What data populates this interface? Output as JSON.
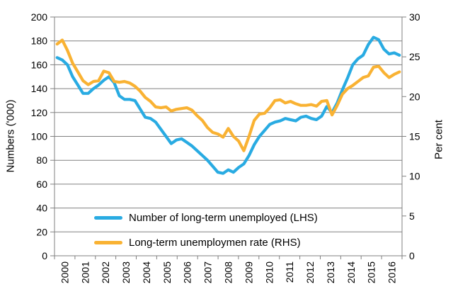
{
  "colors": {
    "blue": "#29ABE2",
    "orange": "#F9B233",
    "grid": "#808080",
    "text": "#000000"
  },
  "chart_data": {
    "type": "line",
    "x": [
      2000,
      2000.25,
      2000.5,
      2000.75,
      2001,
      2001.25,
      2001.5,
      2001.75,
      2002,
      2002.25,
      2002.5,
      2002.75,
      2003,
      2003.25,
      2003.5,
      2003.75,
      2004,
      2004.25,
      2004.5,
      2004.75,
      2005,
      2005.25,
      2005.5,
      2005.75,
      2006,
      2006.25,
      2006.5,
      2006.75,
      2007,
      2007.25,
      2007.5,
      2007.75,
      2008,
      2008.25,
      2008.5,
      2008.75,
      2009,
      2009.25,
      2009.5,
      2009.75,
      2010,
      2010.25,
      2010.5,
      2010.75,
      2011,
      2011.25,
      2011.5,
      2011.75,
      2012,
      2012.25,
      2012.5,
      2012.75,
      2013,
      2013.25,
      2013.5,
      2013.75,
      2014,
      2014.25,
      2014.5,
      2014.75,
      2015,
      2015.25,
      2015.5,
      2015.75,
      2016,
      2016.25,
      2016.5
    ],
    "series": [
      {
        "name": "Number of long-term unemployed (LHS)",
        "axis": "left",
        "color": "#29ABE2",
        "values": [
          166,
          164,
          160,
          150,
          143,
          136,
          136,
          140,
          143,
          147,
          150,
          145,
          134,
          131,
          131,
          130,
          123,
          116,
          115,
          112,
          106,
          100,
          94,
          97,
          98,
          95,
          92,
          88,
          84,
          80,
          75,
          70,
          69,
          72,
          70,
          74,
          77,
          84,
          93,
          100,
          105,
          110,
          112,
          113,
          115,
          114,
          113,
          116,
          117,
          115,
          114,
          117,
          125,
          120,
          128,
          139,
          149,
          160,
          165,
          168,
          177,
          183,
          181,
          173,
          169,
          170,
          168
        ]
      },
      {
        "name": "Long-term unemploymen rate (RHS)",
        "axis": "right",
        "color": "#F9B233",
        "values": [
          26.6,
          27.1,
          25.8,
          24.2,
          23.1,
          22.0,
          21.5,
          21.9,
          22.0,
          23.2,
          23.0,
          21.9,
          21.8,
          21.9,
          21.7,
          21.3,
          20.7,
          19.9,
          19.4,
          18.7,
          18.6,
          18.7,
          18.2,
          18.4,
          18.5,
          18.6,
          18.3,
          17.6,
          17.0,
          16.1,
          15.5,
          15.3,
          14.9,
          16.0,
          15.0,
          14.4,
          13.2,
          15.0,
          17.0,
          17.8,
          17.9,
          18.6,
          19.5,
          19.6,
          19.2,
          19.4,
          19.1,
          18.9,
          18.9,
          19.0,
          18.8,
          19.4,
          19.5,
          17.7,
          18.9,
          20.3,
          21.0,
          21.4,
          21.9,
          22.4,
          22.6,
          23.7,
          23.8,
          23.0,
          22.4,
          22.8,
          23.1
        ]
      }
    ],
    "left_axis": {
      "label": "Numbers ('000)",
      "range": [
        0,
        200
      ],
      "step": 20
    },
    "right_axis": {
      "label": "Per cent",
      "range": [
        0,
        30
      ],
      "step": 5
    },
    "x_tick_labels": [
      "2000",
      "2001",
      "2002",
      "2003",
      "2004",
      "2005",
      "2006",
      "2007",
      "2008",
      "2009",
      "2010",
      "2011",
      "2012",
      "2013",
      "2014",
      "2015",
      "2016"
    ],
    "grid": true,
    "legend_position": "inside-bottom-left"
  }
}
